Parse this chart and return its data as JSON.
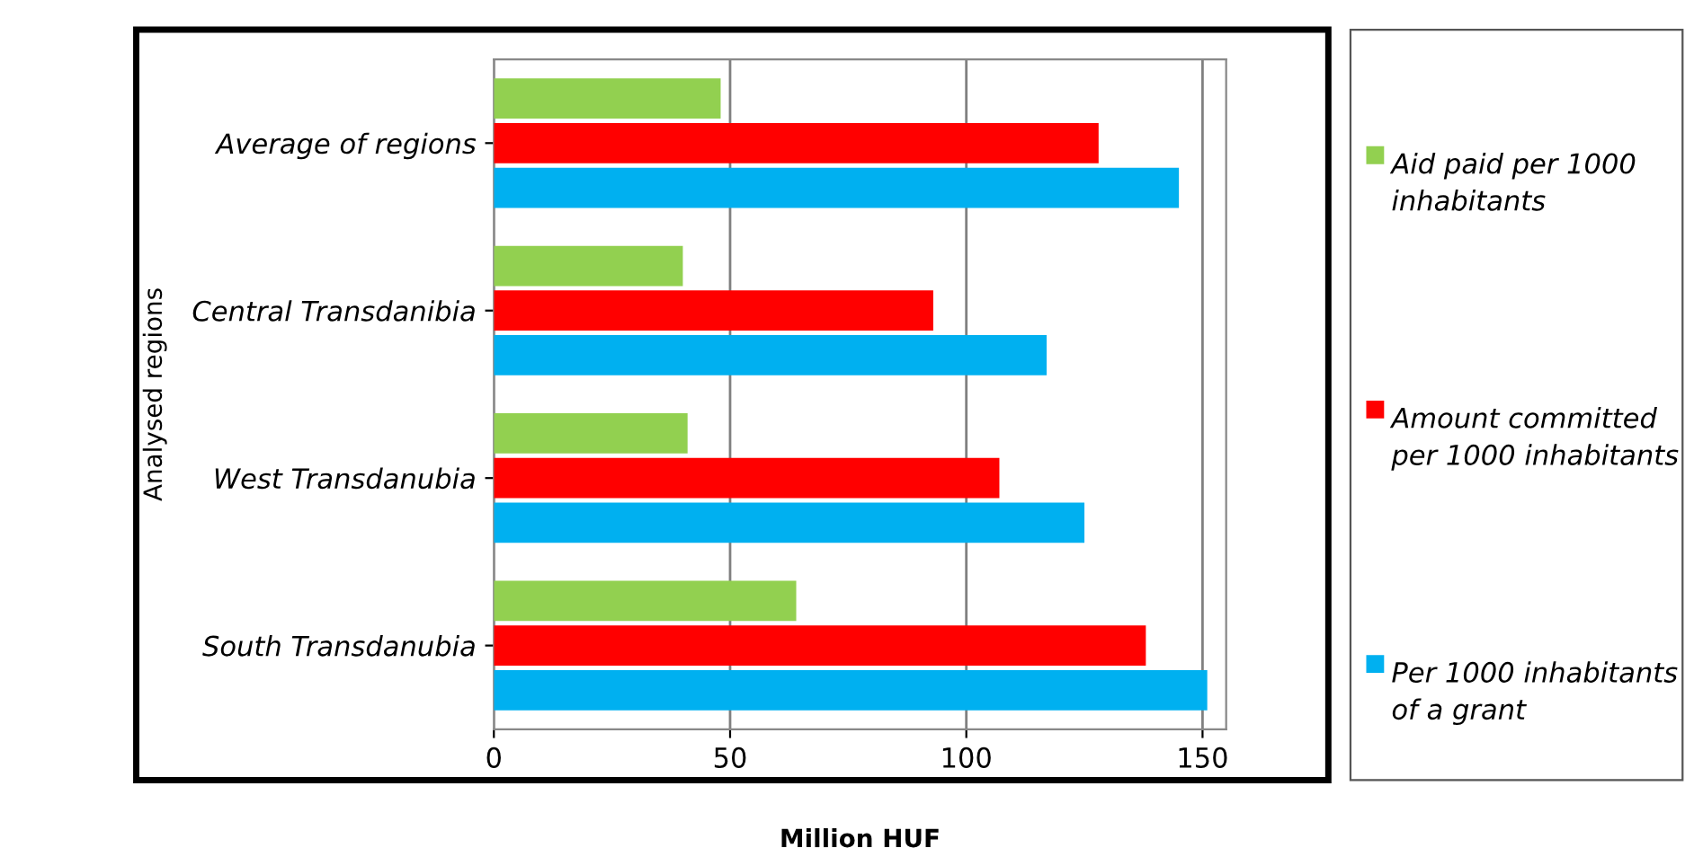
{
  "chart_data": {
    "type": "bar",
    "orientation": "horizontal",
    "xlabel": "Million HUF",
    "ylabel": "Analysed regions",
    "categories": [
      "Average of regions",
      "Central Transdanibia",
      "West Transdanubia",
      "South Transdanubia"
    ],
    "series": [
      {
        "name": "Aid paid per 1000 inhabitants",
        "color": "#92d050",
        "values": [
          48,
          40,
          41,
          64
        ]
      },
      {
        "name": "Amount committed per 1000 inhabitants",
        "color": "#ff0000",
        "values": [
          128,
          93,
          107,
          138
        ]
      },
      {
        "name": "Per 1000 inhabitants of a grant",
        "color": "#00b0f0",
        "values": [
          145,
          117,
          125,
          151
        ]
      }
    ],
    "xlim": [
      0,
      155
    ],
    "xticks": [
      0,
      50,
      100,
      150
    ],
    "grid": "x",
    "legend": "right"
  }
}
